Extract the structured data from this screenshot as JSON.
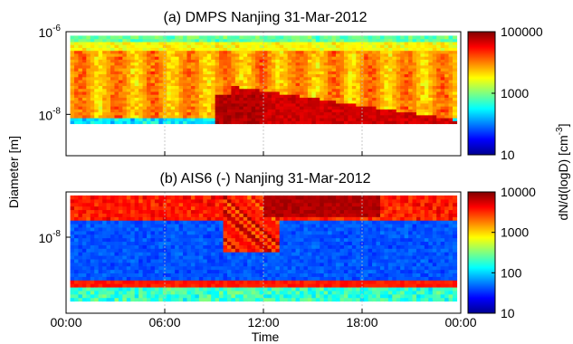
{
  "chart_data": [
    {
      "type": "heatmap",
      "title": "(a) DMPS  Nanjing 31-Mar-2012",
      "xlabel": "",
      "ylabel": "",
      "yscale": "log",
      "ylim_m": [
        1e-09,
        1e-06
      ],
      "data_range_m": [
        6e-09,
        8e-07
      ],
      "yticks": [
        {
          "value": 1e-06,
          "base": "10",
          "exp": "-6"
        },
        {
          "value": 1e-08,
          "base": "10",
          "exp": "-8"
        }
      ],
      "xlim_h": [
        0,
        24
      ],
      "grid": "vertical dotted",
      "colorbar": {
        "scale": "log",
        "range": [
          10,
          100000
        ],
        "ticks": [
          {
            "value": 10,
            "label": "10"
          },
          {
            "value": 1000,
            "label": "1000"
          },
          {
            "value": 100000,
            "label": "100000"
          }
        ]
      }
    },
    {
      "type": "heatmap",
      "title": "(b) AIS6 (-) Nanjing 31-Mar-2012",
      "xlabel": "Time",
      "ylabel": "",
      "yscale": "log",
      "ylim_m": [
        8e-10,
        4.5e-08
      ],
      "data_range_m": [
        1.2e-09,
        4e-08
      ],
      "yticks": [
        {
          "value": 1e-08,
          "base": "10",
          "exp": "-8"
        }
      ],
      "xlim_h": [
        0,
        24
      ],
      "xticks": [
        {
          "value": 0,
          "label": "00:00"
        },
        {
          "value": 6,
          "label": "06:00"
        },
        {
          "value": 12,
          "label": "12:00"
        },
        {
          "value": 18,
          "label": "18:00"
        },
        {
          "value": 24,
          "label": "00:00"
        }
      ],
      "grid": "vertical dotted",
      "colorbar": {
        "scale": "log",
        "range": [
          10,
          10000
        ],
        "ticks": [
          {
            "value": 10,
            "label": "10"
          },
          {
            "value": 100,
            "label": "100"
          },
          {
            "value": 1000,
            "label": "1000"
          },
          {
            "value": 10000,
            "label": "10000"
          }
        ]
      }
    }
  ],
  "shared": {
    "ylabel": "Diameter [m]",
    "colorbar_label": "dN/d(logD) [cm",
    "colorbar_label_exp": "-3",
    "colorbar_label_end": "]"
  }
}
